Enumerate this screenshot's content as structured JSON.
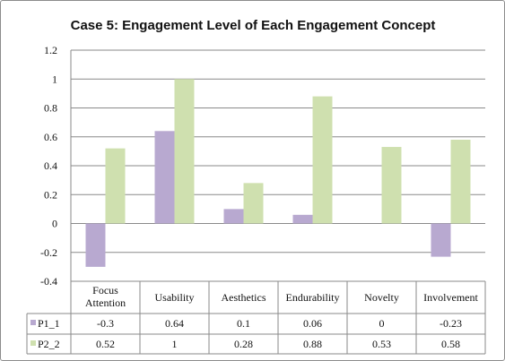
{
  "chart_data": {
    "type": "bar",
    "title": "Case 5: Engagement Level of Each Engagement Concept",
    "categories": [
      "Focus Attention",
      "Usability",
      "Aesthetics",
      "Endurability",
      "Novelty",
      "Involvement"
    ],
    "series": [
      {
        "name": "P1_1",
        "values": [
          -0.3,
          0.64,
          0.1,
          0.06,
          0,
          -0.23
        ],
        "color": "#b8a9d0"
      },
      {
        "name": "P2_2",
        "values": [
          0.52,
          1,
          0.28,
          0.88,
          0.53,
          0.58
        ],
        "color": "#cfe0af"
      }
    ],
    "table_values": [
      [
        "-0.3",
        "0.64",
        "0.1",
        "0.06",
        "0",
        "-0.23"
      ],
      [
        "0.52",
        "1",
        "0.28",
        "0.88",
        "0.53",
        "0.58"
      ]
    ],
    "yticks": [
      "1.2",
      "1",
      "0.8",
      "0.6",
      "0.4",
      "0.2",
      "0",
      "-0.2",
      "-0.4"
    ],
    "ylim": [
      -0.4,
      1.2
    ],
    "grid": true,
    "legend": "data-table",
    "xlabel": "",
    "ylabel": ""
  }
}
